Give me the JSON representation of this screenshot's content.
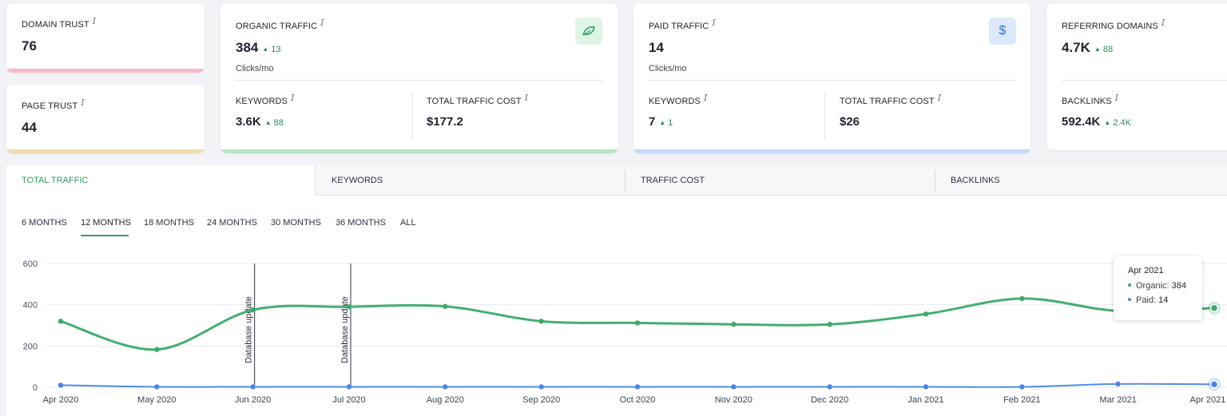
{
  "domain_trust": {
    "label": "DOMAIN TRUST",
    "info": "i",
    "value": "76",
    "bar_color": "#f6b8c8"
  },
  "page_trust": {
    "label": "PAGE TRUST",
    "info": "i",
    "value": "44",
    "bar_color": "#f2dbb0"
  },
  "organic": {
    "label": "ORGANIC TRAFFIC",
    "info": "i",
    "value": "384",
    "delta": "13",
    "unit": "Clicks/mo",
    "icon": "leaf-icon",
    "bar_color": "#b6e4c6",
    "keywords": {
      "label": "KEYWORDS",
      "info": "i",
      "value": "3.6K",
      "delta": "88"
    },
    "cost": {
      "label": "TOTAL TRAFFIC COST",
      "info": "i",
      "value": "$177.2"
    }
  },
  "paid": {
    "label": "PAID TRAFFIC",
    "info": "i",
    "value": "14",
    "unit": "Clicks/mo",
    "icon": "dollar-icon",
    "icon_glyph": "$",
    "bar_color": "#c3d8f5",
    "keywords": {
      "label": "KEYWORDS",
      "info": "i",
      "value": "7",
      "delta": "1"
    },
    "cost": {
      "label": "TOTAL TRAFFIC COST",
      "info": "i",
      "value": "$26"
    }
  },
  "referring": {
    "label": "REFERRING DOMAINS",
    "info": "i",
    "value": "4.7K",
    "delta": "88",
    "backlinks": {
      "label": "BACKLINKS",
      "info": "i",
      "value": "592.4K",
      "delta": "2.4K"
    }
  },
  "tabs": [
    "TOTAL TRAFFIC",
    "KEYWORDS",
    "TRAFFIC COST",
    "BACKLINKS"
  ],
  "periods": [
    "6 MONTHS",
    "12 MONTHS",
    "18 MONTHS",
    "24 MONTHS",
    "30 MONTHS",
    "36 MONTHS",
    "ALL"
  ],
  "tooltip": {
    "title": "Apr 2021",
    "organic_label": "Organic:",
    "organic_value": "384",
    "paid_label": "Paid:",
    "paid_value": "14"
  },
  "colors": {
    "accent": "#2e9e5f",
    "organic": "#3aaa6a",
    "paid": "#4a86e8"
  },
  "chart_data": {
    "type": "line",
    "x": [
      "Apr 2020",
      "May 2020",
      "Jun 2020",
      "Jul 2020",
      "Aug 2020",
      "Sep 2020",
      "Oct 2020",
      "Nov 2020",
      "Dec 2020",
      "Jan 2021",
      "Feb 2021",
      "Mar 2021",
      "Apr 2021"
    ],
    "series": [
      {
        "name": "Organic",
        "color": "#3aaa6a",
        "values": [
          320,
          183,
          375,
          390,
          392,
          320,
          312,
          305,
          305,
          355,
          430,
          370,
          384
        ]
      },
      {
        "name": "Paid",
        "color": "#4a86e8",
        "values": [
          10,
          2,
          2,
          2,
          2,
          2,
          2,
          2,
          2,
          2,
          2,
          16,
          14
        ]
      }
    ],
    "ylim": [
      0,
      600
    ],
    "yticks": [
      0,
      200,
      400,
      600
    ],
    "grid": true,
    "annotations": [
      {
        "x": "Jun 2020",
        "text": "Database update"
      },
      {
        "x": "Jul 2020",
        "text": "Database update"
      }
    ]
  }
}
